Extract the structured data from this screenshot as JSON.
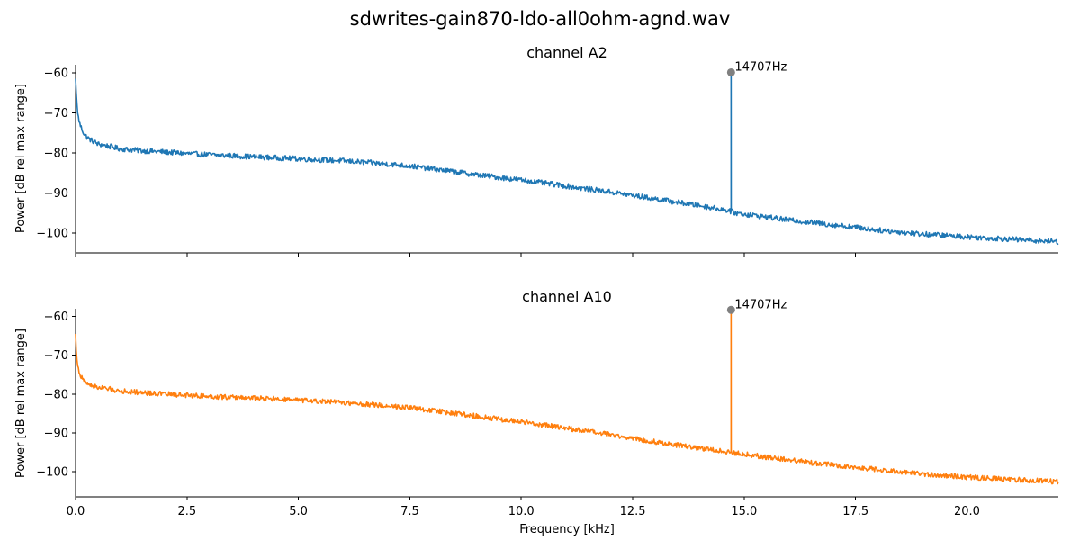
{
  "figure": {
    "title": "sdwrites-gain870-ldo-all0ohm-agnd.wav"
  },
  "chart_data": [
    {
      "type": "line",
      "title": "channel A2",
      "xlabel": "",
      "ylabel": "Power [dB rel max range]",
      "xlim": [
        0,
        22.05
      ],
      "ylim": [
        -105,
        -58
      ],
      "x_ticks": [
        0.0,
        2.5,
        5.0,
        7.5,
        10.0,
        12.5,
        15.0,
        17.5,
        20.0
      ],
      "y_ticks": [
        -60,
        -70,
        -80,
        -90,
        -100
      ],
      "y_tick_labels": [
        "−60",
        "−70",
        "−80",
        "−90",
        "−100"
      ],
      "x_tick_labels_visible": false,
      "color": "#1f77b4",
      "series": [
        {
          "x": [
            0.0,
            0.02,
            0.05,
            0.1,
            0.2,
            0.3,
            0.5,
            0.8,
            1.0,
            1.5,
            2.0,
            2.5,
            3.0,
            4.0,
            5.0,
            6.0,
            7.0,
            7.5,
            8.0,
            9.0,
            10.0,
            11.0,
            12.0,
            13.0,
            14.0,
            14.6,
            14.7,
            14.8,
            15.0,
            16.0,
            17.0,
            17.5,
            18.0,
            19.0,
            20.0,
            21.0,
            22.05
          ],
          "y": [
            -61.5,
            -66.0,
            -70.5,
            -73.0,
            -75.5,
            -76.5,
            -77.8,
            -78.5,
            -79.0,
            -79.5,
            -79.8,
            -80.2,
            -80.5,
            -81.0,
            -81.5,
            -82.0,
            -82.8,
            -83.3,
            -84.0,
            -85.5,
            -86.8,
            -88.3,
            -89.8,
            -91.5,
            -93.2,
            -94.3,
            -94.6,
            -95.0,
            -95.3,
            -96.8,
            -98.0,
            -98.6,
            -99.3,
            -100.3,
            -101.0,
            -101.6,
            -102.2
          ]
        }
      ],
      "peak": {
        "x": 14.707,
        "y": -59.9,
        "label": "14707Hz"
      }
    },
    {
      "type": "line",
      "title": "channel A10",
      "xlabel": "Frequency [kHz]",
      "ylabel": "Power [dB rel max range]",
      "xlim": [
        0,
        22.05
      ],
      "ylim": [
        -106.5,
        -58
      ],
      "x_ticks": [
        0.0,
        2.5,
        5.0,
        7.5,
        10.0,
        12.5,
        15.0,
        17.5,
        20.0
      ],
      "x_tick_labels": [
        "0.0",
        "2.5",
        "5.0",
        "7.5",
        "10.0",
        "12.5",
        "15.0",
        "17.5",
        "20.0"
      ],
      "y_ticks": [
        -60,
        -70,
        -80,
        -90,
        -100
      ],
      "y_tick_labels": [
        "−60",
        "−70",
        "−80",
        "−90",
        "−100"
      ],
      "x_tick_labels_visible": true,
      "color": "#ff7f0e",
      "series": [
        {
          "x": [
            0.0,
            0.02,
            0.05,
            0.1,
            0.2,
            0.3,
            0.5,
            0.8,
            1.0,
            1.5,
            2.0,
            2.5,
            3.0,
            4.0,
            5.0,
            6.0,
            7.0,
            7.5,
            8.0,
            9.0,
            10.0,
            11.0,
            12.0,
            13.0,
            14.0,
            14.6,
            14.7,
            14.8,
            15.0,
            16.0,
            17.0,
            17.5,
            18.0,
            19.0,
            20.0,
            21.0,
            22.05
          ],
          "y": [
            -64.5,
            -70.0,
            -73.0,
            -75.0,
            -76.8,
            -77.5,
            -78.3,
            -78.8,
            -79.2,
            -79.6,
            -80.0,
            -80.3,
            -80.6,
            -81.0,
            -81.6,
            -82.2,
            -83.0,
            -83.5,
            -84.2,
            -85.7,
            -87.2,
            -88.8,
            -90.5,
            -92.3,
            -94.0,
            -94.8,
            -95.0,
            -95.2,
            -95.5,
            -97.0,
            -98.3,
            -98.9,
            -99.5,
            -100.6,
            -101.4,
            -102.0,
            -102.6
          ]
        }
      ],
      "peak": {
        "x": 14.707,
        "y": -58.3,
        "label": "14707Hz"
      }
    }
  ]
}
